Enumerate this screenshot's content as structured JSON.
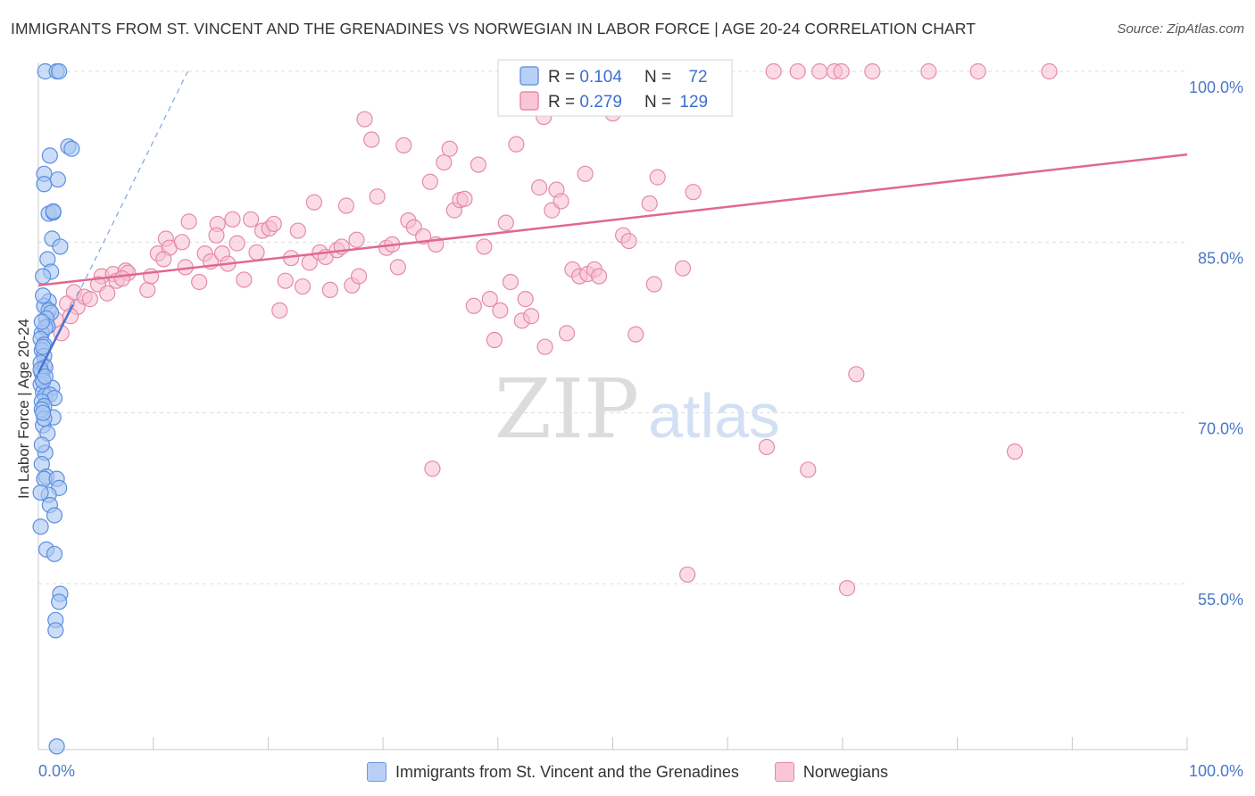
{
  "header": {
    "title": "IMMIGRANTS FROM ST. VINCENT AND THE GRENADINES VS NORWEGIAN IN LABOR FORCE | AGE 20-24 CORRELATION CHART",
    "source": "Source: ZipAtlas.com"
  },
  "watermark": {
    "zip": "ZIP",
    "atlas": "atlas"
  },
  "legend_box": {
    "rows": [
      {
        "r_label": "R = ",
        "r_value": "0.104",
        "n_label": "N = ",
        "n_value": "72",
        "color": "#5b8fe0"
      },
      {
        "r_label": "R = ",
        "r_value": "0.279",
        "n_label": "N = ",
        "n_value": "129",
        "color": "#e58aaa"
      }
    ]
  },
  "bottom_legend": [
    {
      "label": "Immigrants from St. Vincent and the Grenadines"
    },
    {
      "label": "Norwegians"
    }
  ],
  "chart_data": {
    "type": "scatter",
    "title": "IMMIGRANTS FROM ST. VINCENT AND THE GRENADINES VS NORWEGIAN IN LABOR FORCE | AGE 20-24 CORRELATION CHART",
    "ylabel": "In Labor Force | Age 20-24",
    "xlabel": "",
    "xlim": [
      0,
      100
    ],
    "ylim": [
      40,
      101.5
    ],
    "x_tick_labels": [
      {
        "value": 0,
        "label": "0.0%"
      },
      {
        "value": 100,
        "label": "100.0%"
      }
    ],
    "y_tick_labels": [
      {
        "value": 100,
        "label": "100.0%"
      },
      {
        "value": 85,
        "label": "85.0%"
      },
      {
        "value": 70,
        "label": "70.0%"
      },
      {
        "value": 55,
        "label": "55.0%"
      }
    ],
    "grid": true,
    "legend_position": "top-center",
    "colors": {
      "blue_fill": "#a9c6f2",
      "blue_stroke": "#5b8fe0",
      "pink_fill": "#f7bfd1",
      "pink_stroke": "#e58aaa",
      "pink_line": "#e06892",
      "blue_line": "#4a73d0",
      "axis_label": "#4a78c8"
    },
    "series": [
      {
        "name": "Immigrants from St. Vincent and the Grenadines",
        "r": 0.104,
        "n": 72,
        "trend": {
          "x": [
            0,
            3
          ],
          "y": [
            73.5,
            79.5
          ]
        },
        "trend_extension": {
          "x": [
            3,
            13
          ],
          "y": [
            79.5,
            100
          ]
        },
        "points": [
          [
            0.6,
            100
          ],
          [
            1.6,
            100
          ],
          [
            1.8,
            100
          ],
          [
            2.6,
            93.4
          ],
          [
            2.9,
            93.2
          ],
          [
            1.0,
            92.6
          ],
          [
            0.5,
            91.0
          ],
          [
            0.5,
            90.1
          ],
          [
            1.7,
            90.5
          ],
          [
            0.9,
            87.5
          ],
          [
            1.3,
            87.6
          ],
          [
            1.3,
            87.7
          ],
          [
            1.2,
            85.3
          ],
          [
            1.9,
            84.6
          ],
          [
            0.8,
            83.5
          ],
          [
            1.1,
            82.4
          ],
          [
            0.4,
            82.0
          ],
          [
            0.9,
            79.8
          ],
          [
            0.5,
            79.4
          ],
          [
            0.9,
            79.0
          ],
          [
            1.1,
            78.8
          ],
          [
            0.7,
            78.3
          ],
          [
            0.8,
            77.6
          ],
          [
            0.3,
            77.0
          ],
          [
            0.6,
            77.5
          ],
          [
            0.2,
            76.5
          ],
          [
            0.5,
            76.0
          ],
          [
            0.3,
            75.5
          ],
          [
            0.5,
            75.0
          ],
          [
            0.2,
            74.4
          ],
          [
            0.6,
            74.0
          ],
          [
            0.3,
            73.5
          ],
          [
            0.4,
            73.0
          ],
          [
            0.2,
            72.5
          ],
          [
            1.2,
            72.2
          ],
          [
            0.4,
            71.8
          ],
          [
            0.6,
            71.5
          ],
          [
            1.0,
            71.6
          ],
          [
            1.4,
            71.3
          ],
          [
            0.3,
            71.0
          ],
          [
            0.5,
            70.6
          ],
          [
            0.3,
            70.3
          ],
          [
            1.3,
            69.6
          ],
          [
            0.4,
            68.9
          ],
          [
            0.8,
            68.2
          ],
          [
            0.6,
            66.5
          ],
          [
            0.3,
            65.5
          ],
          [
            0.7,
            64.4
          ],
          [
            0.5,
            64.2
          ],
          [
            1.6,
            64.2
          ],
          [
            1.8,
            63.4
          ],
          [
            0.9,
            62.8
          ],
          [
            1.0,
            61.9
          ],
          [
            1.4,
            61.0
          ],
          [
            0.7,
            58.0
          ],
          [
            1.4,
            57.6
          ],
          [
            1.9,
            54.1
          ],
          [
            1.8,
            53.4
          ],
          [
            1.5,
            51.8
          ],
          [
            1.5,
            50.9
          ],
          [
            1.6,
            40.7
          ],
          [
            0.4,
            80.3
          ],
          [
            0.3,
            78.0
          ],
          [
            0.2,
            73.8
          ],
          [
            0.4,
            72.8
          ],
          [
            0.5,
            69.5
          ],
          [
            0.3,
            67.2
          ],
          [
            0.2,
            63.0
          ],
          [
            0.2,
            60.0
          ],
          [
            0.4,
            75.8
          ],
          [
            0.6,
            73.2
          ],
          [
            0.4,
            70.0
          ]
        ]
      },
      {
        "name": "Norwegians",
        "r": 0.279,
        "n": 129,
        "trend": {
          "x": [
            0,
            100
          ],
          "y": [
            81.2,
            92.7
          ]
        },
        "points": [
          [
            0.5,
            74.2
          ],
          [
            2.0,
            77.0
          ],
          [
            2.5,
            79.6
          ],
          [
            3.4,
            79.3
          ],
          [
            3.1,
            80.6
          ],
          [
            4.0,
            80.2
          ],
          [
            4.5,
            80.0
          ],
          [
            5.5,
            82.0
          ],
          [
            5.2,
            81.3
          ],
          [
            6.5,
            82.2
          ],
          [
            6.8,
            81.6
          ],
          [
            7.6,
            82.5
          ],
          [
            7.8,
            82.3
          ],
          [
            7.3,
            81.8
          ],
          [
            9.5,
            80.8
          ],
          [
            10.4,
            84.0
          ],
          [
            11.1,
            85.3
          ],
          [
            11.4,
            84.5
          ],
          [
            12.5,
            85.0
          ],
          [
            12.8,
            82.8
          ],
          [
            13.1,
            86.8
          ],
          [
            14.0,
            81.5
          ],
          [
            14.5,
            84.0
          ],
          [
            15.0,
            83.3
          ],
          [
            15.6,
            86.6
          ],
          [
            16.0,
            84.0
          ],
          [
            16.5,
            83.1
          ],
          [
            16.9,
            87.0
          ],
          [
            17.3,
            84.9
          ],
          [
            17.9,
            81.7
          ],
          [
            18.5,
            87.0
          ],
          [
            19.0,
            84.1
          ],
          [
            19.5,
            86.0
          ],
          [
            20.1,
            86.2
          ],
          [
            20.5,
            86.6
          ],
          [
            21.0,
            79.0
          ],
          [
            21.5,
            81.6
          ],
          [
            22.0,
            83.6
          ],
          [
            22.6,
            86.0
          ],
          [
            23.0,
            81.1
          ],
          [
            23.6,
            83.2
          ],
          [
            24.0,
            88.5
          ],
          [
            24.5,
            84.1
          ],
          [
            25.0,
            83.7
          ],
          [
            25.4,
            80.8
          ],
          [
            26.0,
            84.3
          ],
          [
            26.4,
            84.6
          ],
          [
            26.8,
            88.2
          ],
          [
            27.3,
            81.2
          ],
          [
            27.7,
            85.2
          ],
          [
            28.4,
            95.8
          ],
          [
            29.0,
            94.0
          ],
          [
            29.5,
            89.0
          ],
          [
            30.3,
            84.5
          ],
          [
            30.8,
            84.8
          ],
          [
            31.3,
            82.8
          ],
          [
            31.8,
            93.5
          ],
          [
            32.2,
            86.9
          ],
          [
            32.7,
            86.3
          ],
          [
            33.5,
            85.5
          ],
          [
            34.1,
            90.3
          ],
          [
            34.6,
            84.8
          ],
          [
            34.3,
            65.1
          ],
          [
            35.3,
            92.0
          ],
          [
            35.8,
            93.2
          ],
          [
            36.2,
            87.8
          ],
          [
            36.7,
            88.7
          ],
          [
            37.1,
            88.8
          ],
          [
            37.9,
            79.4
          ],
          [
            38.3,
            91.8
          ],
          [
            38.8,
            84.6
          ],
          [
            39.3,
            80.0
          ],
          [
            39.7,
            76.4
          ],
          [
            40.2,
            79.0
          ],
          [
            40.7,
            86.7
          ],
          [
            41.1,
            81.5
          ],
          [
            41.6,
            93.6
          ],
          [
            42.1,
            78.1
          ],
          [
            42.4,
            80.0
          ],
          [
            42.9,
            78.5
          ],
          [
            43.6,
            89.8
          ],
          [
            44.1,
            75.8
          ],
          [
            44.7,
            87.8
          ],
          [
            45.1,
            89.6
          ],
          [
            45.5,
            88.6
          ],
          [
            46.0,
            77.0
          ],
          [
            46.5,
            82.6
          ],
          [
            47.1,
            82.0
          ],
          [
            47.6,
            91.0
          ],
          [
            47.8,
            82.2
          ],
          [
            48.4,
            82.6
          ],
          [
            48.8,
            82.0
          ],
          [
            50.0,
            96.3
          ],
          [
            50.4,
            100
          ],
          [
            50.9,
            85.6
          ],
          [
            51.4,
            85.1
          ],
          [
            52.0,
            76.9
          ],
          [
            53.2,
            88.4
          ],
          [
            53.6,
            81.3
          ],
          [
            53.9,
            90.7
          ],
          [
            54.3,
            100
          ],
          [
            56.1,
            82.7
          ],
          [
            56.5,
            55.8
          ],
          [
            57.0,
            89.4
          ],
          [
            57.6,
            100
          ],
          [
            58.1,
            100
          ],
          [
            58.5,
            100
          ],
          [
            63.4,
            67.0
          ],
          [
            64.0,
            100
          ],
          [
            66.1,
            100
          ],
          [
            67.0,
            65.0
          ],
          [
            68.0,
            100
          ],
          [
            69.3,
            100
          ],
          [
            69.9,
            100
          ],
          [
            70.4,
            54.6
          ],
          [
            71.2,
            73.4
          ],
          [
            72.6,
            100
          ],
          [
            77.5,
            100
          ],
          [
            81.8,
            100
          ],
          [
            85.0,
            66.6
          ],
          [
            88.0,
            100
          ],
          [
            9.8,
            82.0
          ],
          [
            10.9,
            83.5
          ],
          [
            6.0,
            80.5
          ],
          [
            2.8,
            78.5
          ],
          [
            1.5,
            78.2
          ],
          [
            27.9,
            82.0
          ],
          [
            15.5,
            85.6
          ],
          [
            44.0,
            96.0
          ]
        ]
      }
    ]
  }
}
